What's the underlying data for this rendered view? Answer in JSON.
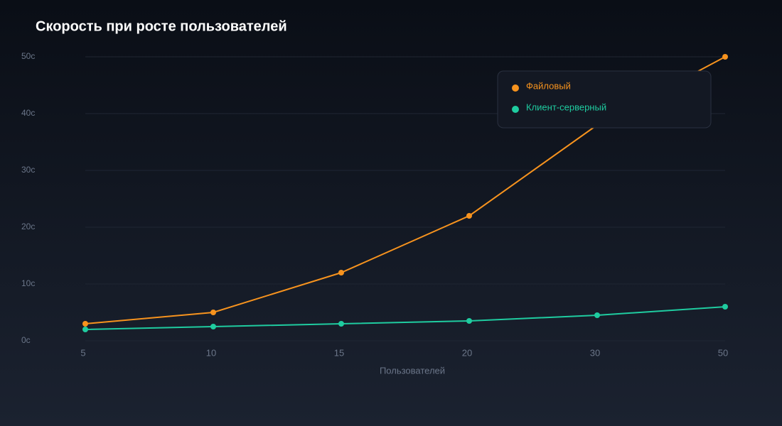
{
  "chart_data": {
    "type": "line",
    "title": "Скорость при росте пользователей",
    "x_label": "Пользователей",
    "categories": [
      "5",
      "10",
      "15",
      "20",
      "30",
      "50"
    ],
    "series": [
      {
        "name": "Файловый",
        "color": "#f7931e",
        "values": [
          3,
          5,
          12,
          22,
          38,
          50
        ]
      },
      {
        "name": "Клиент-серверный",
        "color": "#1fcca0",
        "values": [
          2,
          2.5,
          3,
          3.5,
          4.5,
          6
        ]
      }
    ],
    "ylim": [
      0,
      50
    ],
    "yticks": [
      {
        "value": 0,
        "label": "0с"
      },
      {
        "value": 10,
        "label": "10с"
      },
      {
        "value": 20,
        "label": "20с"
      },
      {
        "value": 30,
        "label": "30с"
      },
      {
        "value": 40,
        "label": "40с"
      },
      {
        "value": 50,
        "label": "50с"
      }
    ],
    "grid": true,
    "legend": "upper-right"
  }
}
